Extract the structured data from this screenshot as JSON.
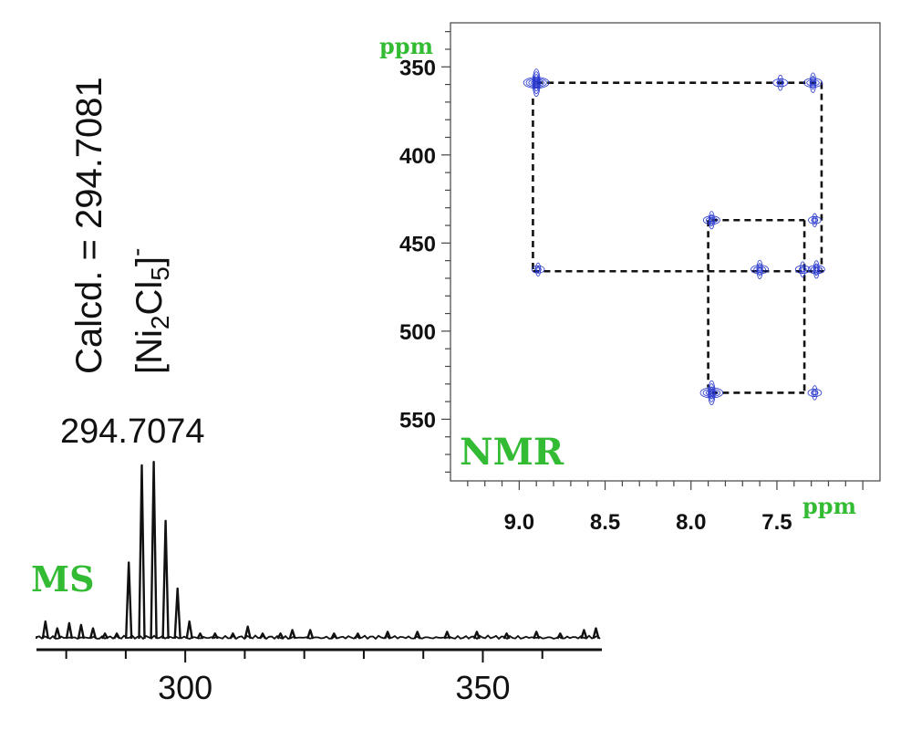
{
  "annotations": {
    "calcd": "Calcd. = 294.7081",
    "formula_prefix": "[Ni",
    "formula_sub1": "2",
    "formula_mid": "Cl",
    "formula_sub2": "5",
    "formula_suffix": "]",
    "formula_charge": "-",
    "observed_peak": "294.7074",
    "ms_label": "MS",
    "nmr_label": "NMR",
    "ppm_y": "ppm",
    "ppm_x": "ppm"
  },
  "colors": {
    "green": "#33bb33",
    "contour": "#2233cc",
    "ink": "#111111"
  },
  "chart_data": [
    {
      "type": "line",
      "name": "MS spectrum",
      "xlim": [
        275,
        370
      ],
      "x_ticks": [
        300,
        350
      ],
      "tick_labels": [
        "300",
        "350"
      ],
      "peaks": [
        {
          "x": 276.5,
          "h": 0.1
        },
        {
          "x": 278.5,
          "h": 0.06
        },
        {
          "x": 280.5,
          "h": 0.09
        },
        {
          "x": 282.5,
          "h": 0.08
        },
        {
          "x": 284.5,
          "h": 0.06
        },
        {
          "x": 286.5,
          "h": 0.03
        },
        {
          "x": 288.5,
          "h": 0.03
        },
        {
          "x": 290.5,
          "h": 0.44
        },
        {
          "x": 292.7,
          "h": 1.0
        },
        {
          "x": 294.7,
          "h": 1.02
        },
        {
          "x": 296.7,
          "h": 0.68
        },
        {
          "x": 298.7,
          "h": 0.29
        },
        {
          "x": 300.7,
          "h": 0.1
        },
        {
          "x": 302.5,
          "h": 0.03
        },
        {
          "x": 305.0,
          "h": 0.03
        },
        {
          "x": 308.0,
          "h": 0.03
        },
        {
          "x": 310.5,
          "h": 0.07
        },
        {
          "x": 313.0,
          "h": 0.03
        },
        {
          "x": 316.0,
          "h": 0.03
        },
        {
          "x": 318.0,
          "h": 0.05
        },
        {
          "x": 321.0,
          "h": 0.05
        },
        {
          "x": 325.0,
          "h": 0.03
        },
        {
          "x": 329.0,
          "h": 0.03
        },
        {
          "x": 334.0,
          "h": 0.04
        },
        {
          "x": 339.0,
          "h": 0.04
        },
        {
          "x": 344.0,
          "h": 0.04
        },
        {
          "x": 349.0,
          "h": 0.04
        },
        {
          "x": 354.0,
          "h": 0.03
        },
        {
          "x": 359.0,
          "h": 0.04
        },
        {
          "x": 363.0,
          "h": 0.03
        },
        {
          "x": 367.0,
          "h": 0.05
        },
        {
          "x": 369.0,
          "h": 0.06
        }
      ]
    },
    {
      "type": "scatter",
      "name": "2D NMR",
      "xlim": [
        9.4,
        6.9
      ],
      "ylim": [
        325,
        585
      ],
      "x_ticks": [
        9.0,
        8.5,
        8.0,
        7.5
      ],
      "x_tick_labels": [
        "9.0",
        "8.5",
        "8.0",
        "7.5"
      ],
      "y_ticks": [
        350,
        400,
        450,
        500,
        550
      ],
      "y_tick_labels": [
        "350",
        "400",
        "450",
        "500",
        "550"
      ],
      "crosspeaks": [
        {
          "x": 8.9,
          "y": 359,
          "size": 1.0
        },
        {
          "x": 7.48,
          "y": 359,
          "size": 0.45
        },
        {
          "x": 7.29,
          "y": 359,
          "size": 0.65
        },
        {
          "x": 7.88,
          "y": 437,
          "size": 0.55
        },
        {
          "x": 7.28,
          "y": 437,
          "size": 0.35
        },
        {
          "x": 8.89,
          "y": 465,
          "size": 0.35
        },
        {
          "x": 7.6,
          "y": 465,
          "size": 0.6
        },
        {
          "x": 7.35,
          "y": 465,
          "size": 0.45
        },
        {
          "x": 7.27,
          "y": 465,
          "size": 0.55
        },
        {
          "x": 7.88,
          "y": 535,
          "size": 0.85
        },
        {
          "x": 7.28,
          "y": 535,
          "size": 0.4
        }
      ],
      "connections": [
        {
          "x1": 8.9,
          "y1": 359,
          "x2": 7.24,
          "y2": 359
        },
        {
          "x1": 7.24,
          "y1": 359,
          "x2": 7.24,
          "y2": 465
        },
        {
          "x1": 8.92,
          "y1": 368,
          "x2": 8.92,
          "y2": 466
        },
        {
          "x1": 8.92,
          "y1": 466,
          "x2": 7.22,
          "y2": 466
        },
        {
          "x1": 7.88,
          "y1": 437,
          "x2": 7.34,
          "y2": 437
        },
        {
          "x1": 7.34,
          "y1": 437,
          "x2": 7.34,
          "y2": 535
        },
        {
          "x1": 7.9,
          "y1": 437,
          "x2": 7.9,
          "y2": 532
        },
        {
          "x1": 7.88,
          "y1": 535,
          "x2": 7.34,
          "y2": 535
        }
      ]
    }
  ]
}
